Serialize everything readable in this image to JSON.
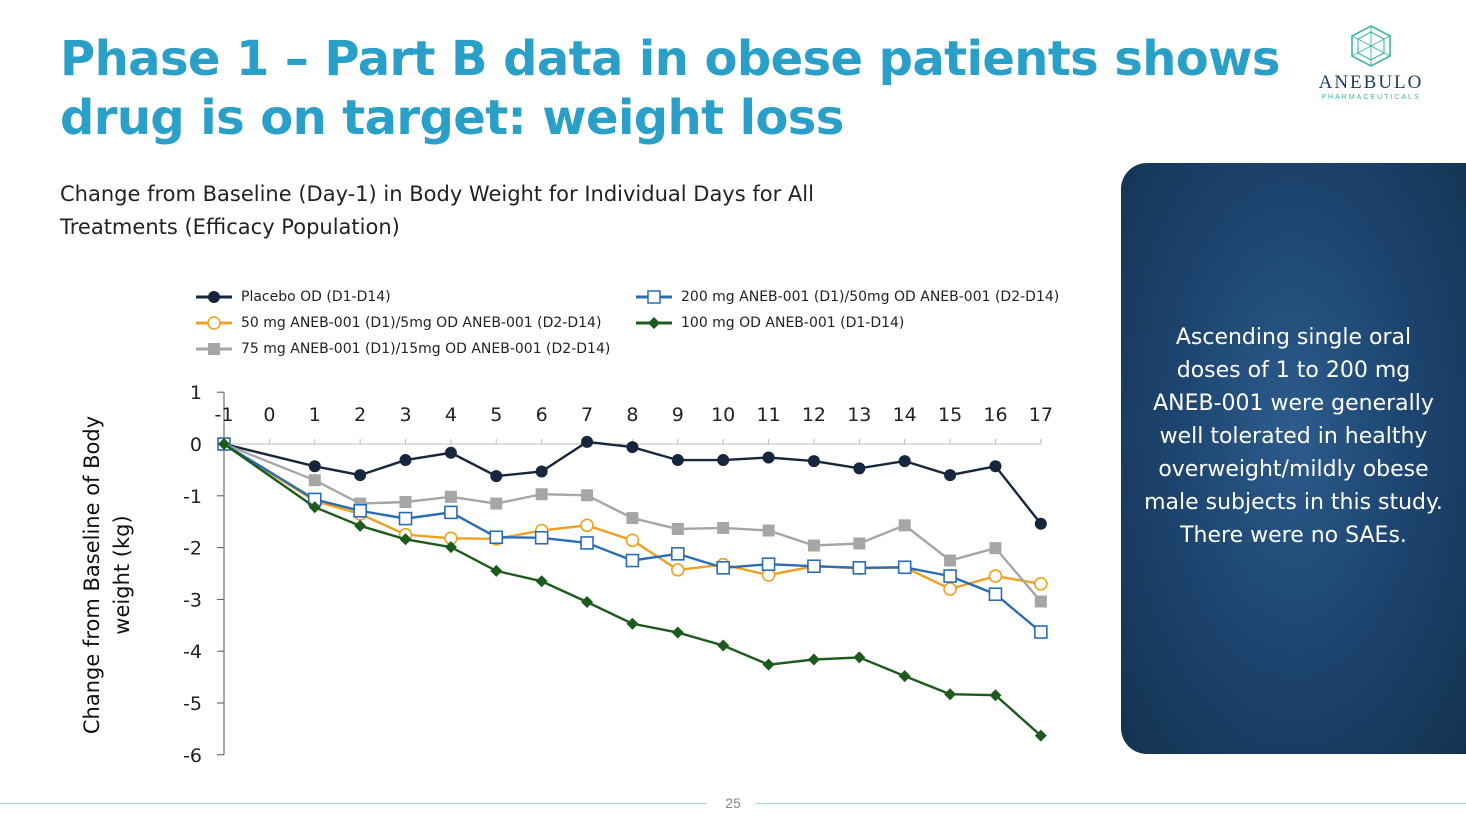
{
  "slide": {
    "title": "Phase 1 – Part B data in obese patients shows drug is on target: weight loss",
    "subtitle": "Change from Baseline (Day-1) in Body Weight for Individual Days for All Treatments (Efficacy Population)",
    "page_number": "25"
  },
  "logo": {
    "name": "ANEBULO",
    "tagline": "PHARMACEUTICALS",
    "icon": "hexagon-crystal-icon"
  },
  "panel": {
    "text": "Ascending single oral doses of 1 to 200 mg ANEB-001 were generally well tolerated in healthy overweight/mildly obese male subjects in this study. There were no SAEs."
  },
  "colors": {
    "title": "#2aa0c8",
    "panel": "#1e4672",
    "placebo": "#15263d",
    "mg50": "#f0a020",
    "mg75": "#a6a6a6",
    "mg200": "#2b6cb4",
    "mg100": "#1d5a1d"
  },
  "chart_data": {
    "type": "line",
    "ylabel": "Change from Baseline of Body weight (kg)",
    "xlabel": "",
    "x": [
      -1,
      0,
      1,
      2,
      3,
      4,
      5,
      6,
      7,
      8,
      9,
      10,
      11,
      12,
      13,
      14,
      15,
      16,
      17
    ],
    "xticks": [
      "-1",
      "0",
      "1",
      "2",
      "3",
      "4",
      "5",
      "6",
      "7",
      "8",
      "9",
      "10",
      "11",
      "12",
      "13",
      "14",
      "15",
      "16",
      "17"
    ],
    "ylim": [
      -6,
      1
    ],
    "yticks": [
      "1",
      "0",
      "-1",
      "-2",
      "-3",
      "-4",
      "-5",
      "-6"
    ],
    "grid": false,
    "legend_position": "top",
    "series": [
      {
        "name": "Placebo OD (D1-D14)",
        "marker": "circle-filled",
        "color": "#15263d",
        "x": [
          -1,
          1,
          2,
          3,
          4,
          5,
          6,
          7,
          8,
          9,
          10,
          11,
          12,
          13,
          14,
          15,
          16,
          17
        ],
        "values": [
          0,
          -0.43,
          -0.6,
          -0.31,
          -0.17,
          -0.62,
          -0.53,
          0.04,
          -0.06,
          -0.31,
          -0.31,
          -0.26,
          -0.33,
          -0.47,
          -0.33,
          -0.6,
          -0.43,
          -1.54
        ]
      },
      {
        "name": "50 mg ANEB-001 (D1)/5mg OD ANEB-001 (D2-D14)",
        "marker": "circle-open",
        "color": "#f0a020",
        "x": [
          -1,
          1,
          2,
          3,
          4,
          5,
          6,
          7,
          8,
          9,
          10,
          11,
          12,
          13,
          14,
          15,
          16,
          17
        ],
        "values": [
          0,
          -1.1,
          -1.35,
          -1.75,
          -1.82,
          -1.83,
          -1.67,
          -1.57,
          -1.86,
          -2.43,
          -2.33,
          -2.53,
          -2.36,
          -2.4,
          -2.38,
          -2.8,
          -2.55,
          -2.7
        ]
      },
      {
        "name": "75 mg ANEB-001 (D1)/15mg OD ANEB-001 (D2-D14)",
        "marker": "square-filled",
        "color": "#a6a6a6",
        "x": [
          -1,
          1,
          2,
          3,
          4,
          5,
          6,
          7,
          8,
          9,
          10,
          11,
          12,
          13,
          14,
          15,
          16,
          17
        ],
        "values": [
          0,
          -0.7,
          -1.15,
          -1.12,
          -1.02,
          -1.15,
          -0.97,
          -0.99,
          -1.43,
          -1.64,
          -1.62,
          -1.67,
          -1.96,
          -1.92,
          -1.57,
          -2.25,
          -2.01,
          -3.04
        ]
      },
      {
        "name": "200 mg ANEB-001 (D1)/50mg OD ANEB-001 (D2-D14)",
        "marker": "square-open",
        "color": "#2b6cb4",
        "x": [
          -1,
          1,
          2,
          3,
          4,
          5,
          6,
          7,
          8,
          9,
          10,
          11,
          12,
          13,
          14,
          15,
          16,
          17
        ],
        "values": [
          0,
          -1.07,
          -1.29,
          -1.44,
          -1.32,
          -1.8,
          -1.81,
          -1.91,
          -2.25,
          -2.12,
          -2.39,
          -2.32,
          -2.36,
          -2.39,
          -2.38,
          -2.55,
          -2.9,
          -3.63
        ]
      },
      {
        "name": "100 mg OD ANEB-001 (D1-D14)",
        "marker": "diamond-filled",
        "color": "#1d5a1d",
        "x": [
          -1,
          1,
          2,
          3,
          4,
          5,
          6,
          7,
          8,
          9,
          10,
          11,
          12,
          13,
          14,
          15,
          16,
          17
        ],
        "values": [
          0,
          -1.22,
          -1.58,
          -1.84,
          -1.99,
          -2.45,
          -2.65,
          -3.05,
          -3.47,
          -3.64,
          -3.89,
          -4.26,
          -4.16,
          -4.12,
          -4.48,
          -4.83,
          -4.85,
          -5.63
        ]
      }
    ]
  }
}
